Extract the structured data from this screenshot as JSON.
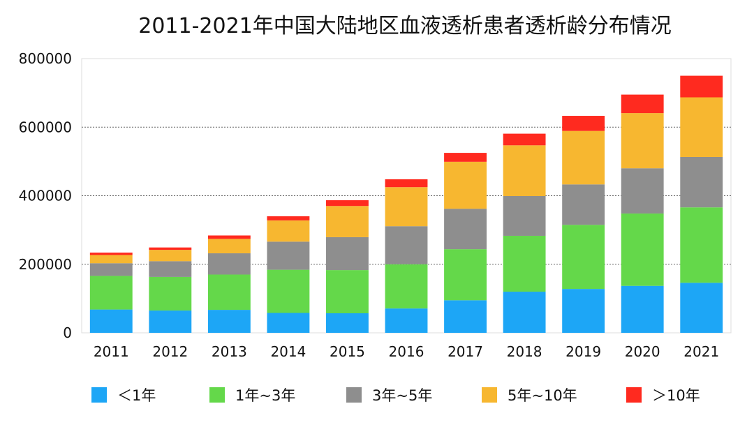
{
  "chart_data": {
    "type": "bar",
    "stacked": true,
    "title": "2011-2021年中国大陆地区血液透析患者透析龄分布情况",
    "xlabel": "",
    "ylabel": "",
    "ylim": [
      0,
      800000
    ],
    "yticks": [
      "0",
      "200000",
      "400000",
      "600000",
      "800000"
    ],
    "grid": true,
    "legend_position": "bottom",
    "categories": [
      "2011",
      "2012",
      "2013",
      "2014",
      "2015",
      "2016",
      "2017",
      "2018",
      "2019",
      "2020",
      "2021"
    ],
    "series": [
      {
        "name": "＜1年",
        "color": "#1da6f6",
        "values": [
          68000,
          65000,
          67000,
          58000,
          57000,
          71000,
          95000,
          120000,
          128000,
          137000,
          146000
        ]
      },
      {
        "name": "1年~3年",
        "color": "#64d84a",
        "values": [
          98000,
          98000,
          103000,
          126000,
          126000,
          129000,
          149000,
          163000,
          187000,
          211000,
          220000
        ]
      },
      {
        "name": "3年~5年",
        "color": "#8e8e8e",
        "values": [
          37000,
          46000,
          62000,
          82000,
          96000,
          111000,
          118000,
          116000,
          118000,
          132000,
          147000
        ]
      },
      {
        "name": "5年~10年",
        "color": "#f7b730",
        "values": [
          24000,
          33000,
          42000,
          62000,
          91000,
          114000,
          137000,
          148000,
          156000,
          161000,
          174000
        ]
      },
      {
        "name": "＞10年",
        "color": "#ff2a1f",
        "values": [
          7000,
          7000,
          10000,
          12000,
          17000,
          23000,
          26000,
          34000,
          44000,
          54000,
          63000
        ]
      }
    ]
  }
}
